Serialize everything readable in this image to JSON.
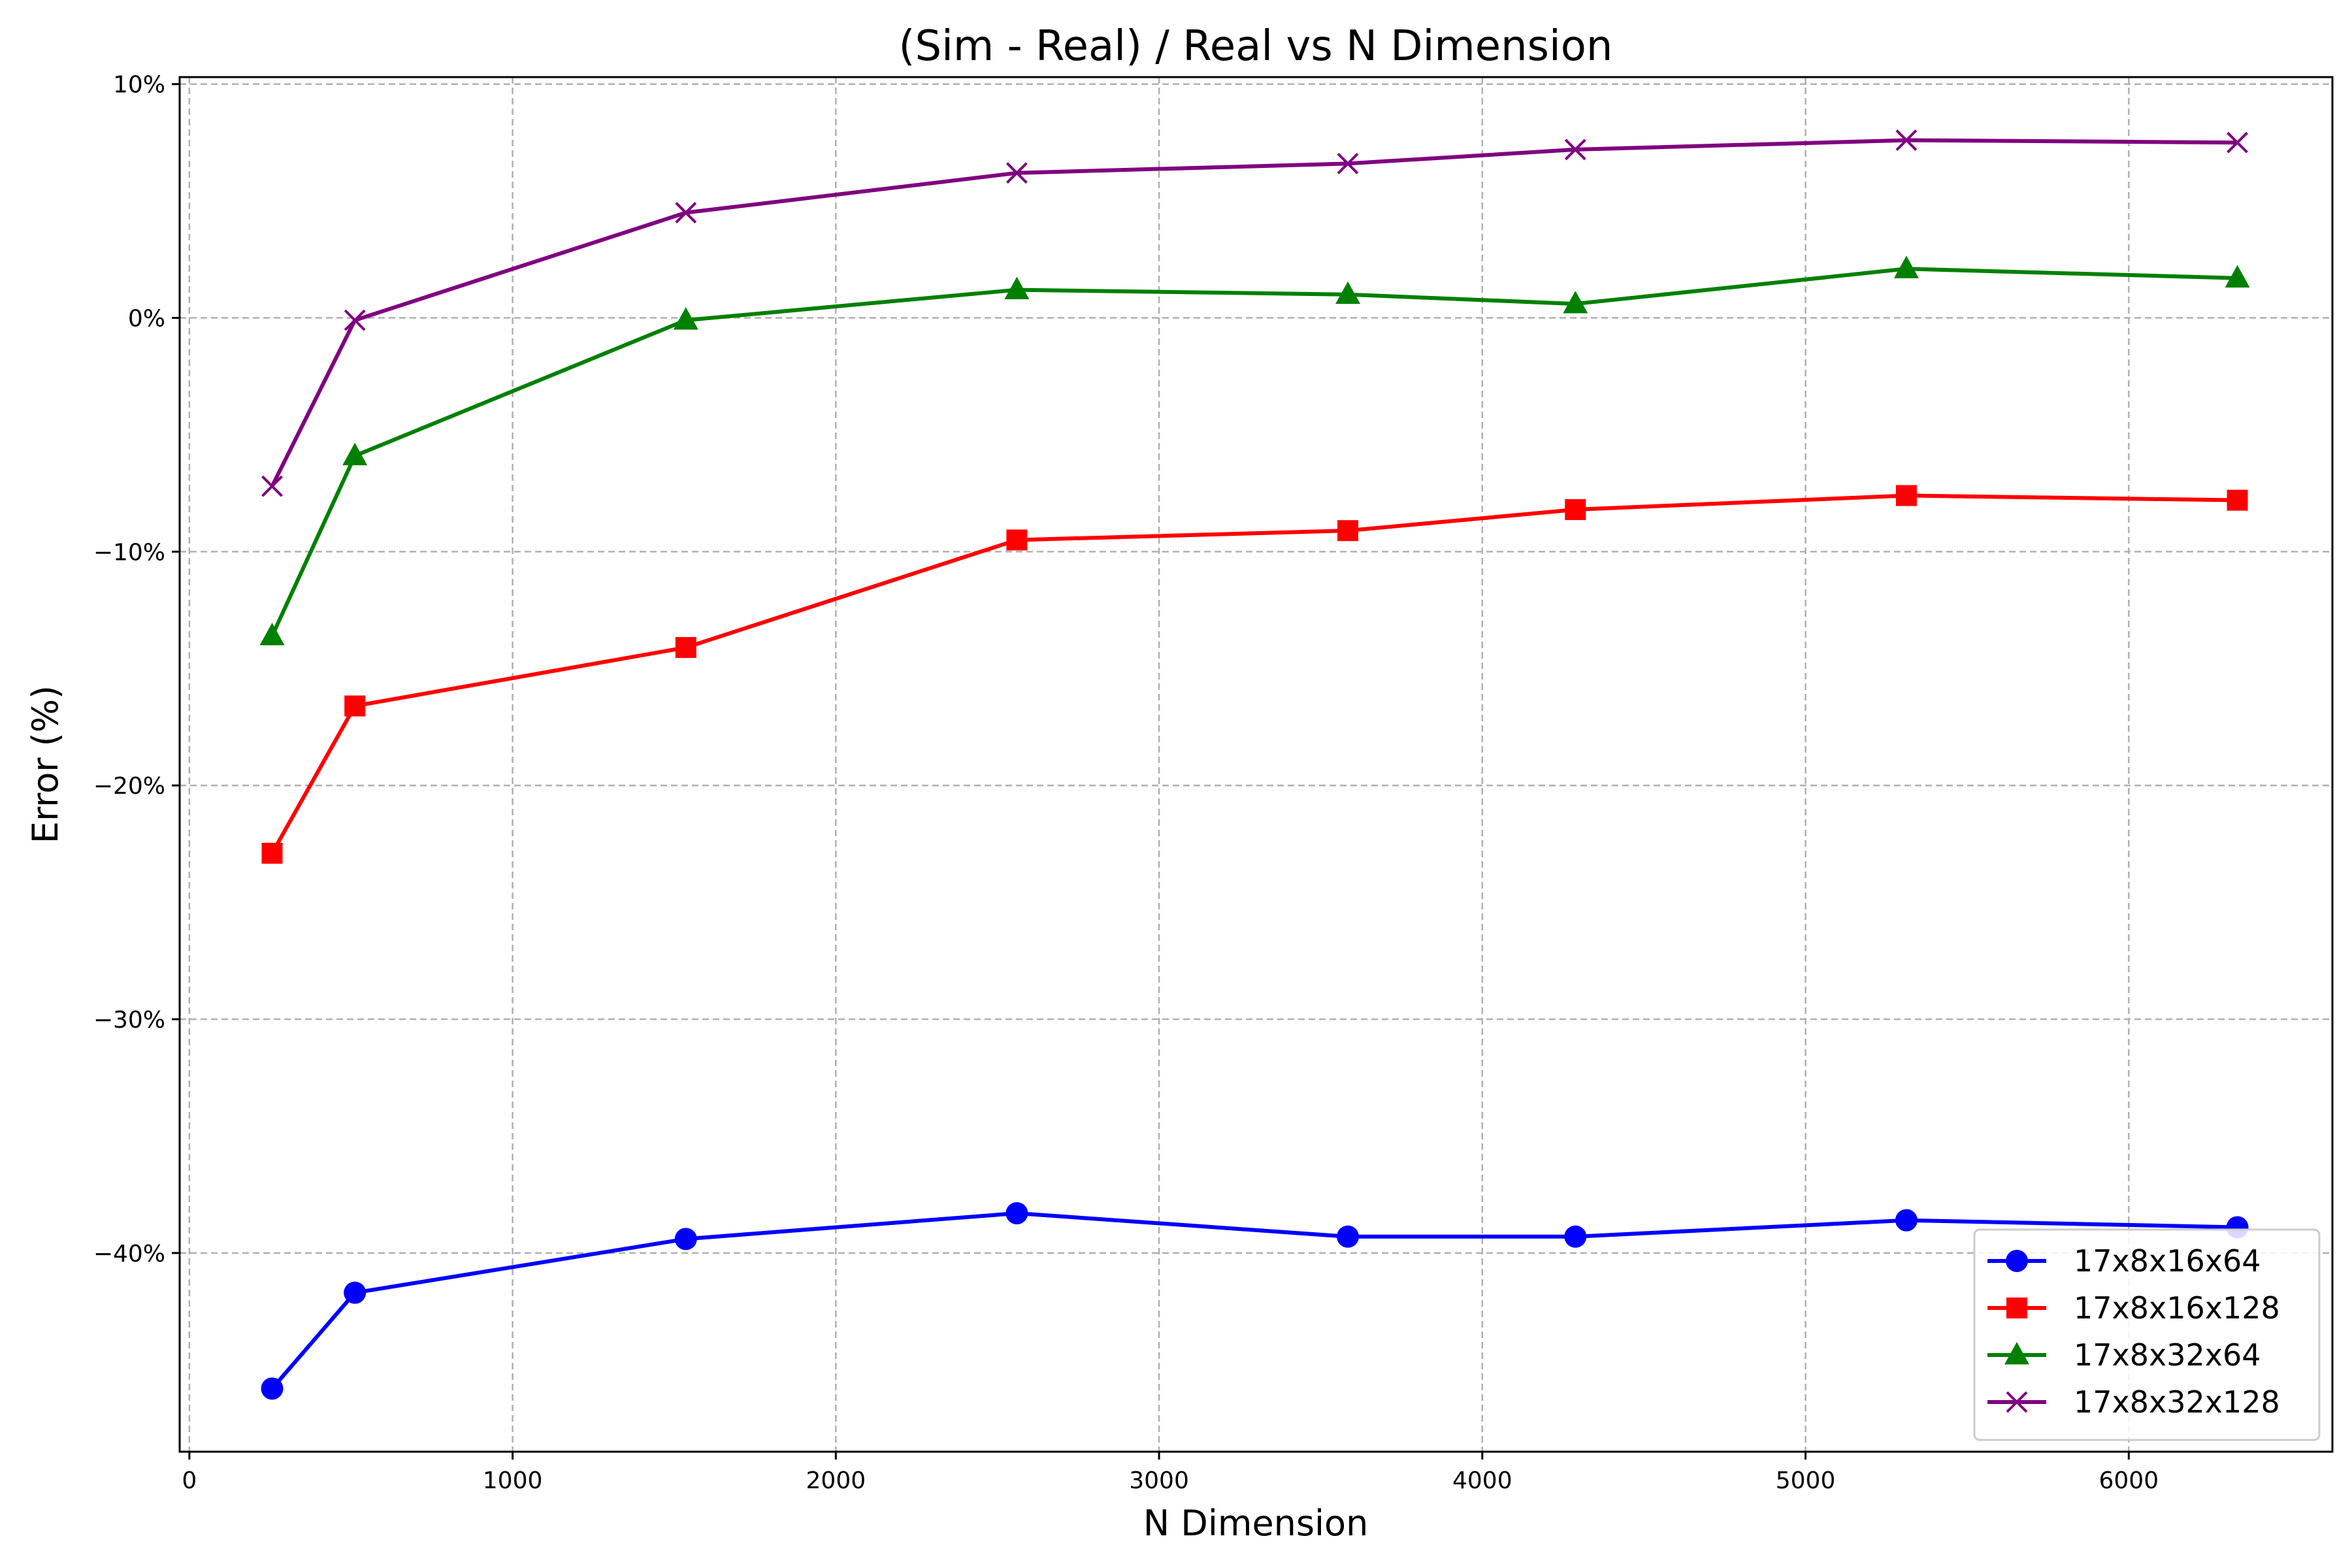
{
  "chart_data": {
    "type": "line",
    "title": "(Sim - Real) / Real vs N Dimension",
    "xlabel": "N Dimension",
    "ylabel": "Error (%)",
    "xlim": [
      -30,
      6630
    ],
    "ylim": [
      -48.5,
      10.3
    ],
    "xticks": [
      0,
      1000,
      2000,
      3000,
      4000,
      5000,
      6000
    ],
    "xtick_labels": [
      "0",
      "1000",
      "2000",
      "3000",
      "4000",
      "5000",
      "6000"
    ],
    "yticks": [
      10,
      0,
      -10,
      -20,
      -30,
      -40
    ],
    "ytick_labels": [
      "10%",
      "0%",
      "−10%",
      "−20%",
      "−30%",
      "−40%"
    ],
    "grid": true,
    "legend_position": "lower-right",
    "x": [
      256,
      512,
      1536,
      2560,
      3584,
      4288,
      5312,
      6336
    ],
    "series": [
      {
        "name": "17x8x16x64",
        "color": "#0000ff",
        "marker": "circle",
        "values": [
          -45.8,
          -41.7,
          -39.4,
          -38.3,
          -39.3,
          -39.3,
          -38.6,
          -38.9
        ]
      },
      {
        "name": "17x8x16x128",
        "color": "#ff0000",
        "marker": "square",
        "values": [
          -22.9,
          -16.6,
          -14.1,
          -9.5,
          -9.1,
          -8.2,
          -7.6,
          -7.8
        ]
      },
      {
        "name": "17x8x32x64",
        "color": "#008000",
        "marker": "triangle",
        "values": [
          -13.6,
          -5.9,
          -0.1,
          1.2,
          1.0,
          0.6,
          2.1,
          1.7
        ]
      },
      {
        "name": "17x8x32x128",
        "color": "#800080",
        "marker": "x",
        "values": [
          -7.2,
          -0.1,
          4.5,
          6.2,
          6.6,
          7.2,
          7.6,
          7.5
        ]
      }
    ]
  }
}
